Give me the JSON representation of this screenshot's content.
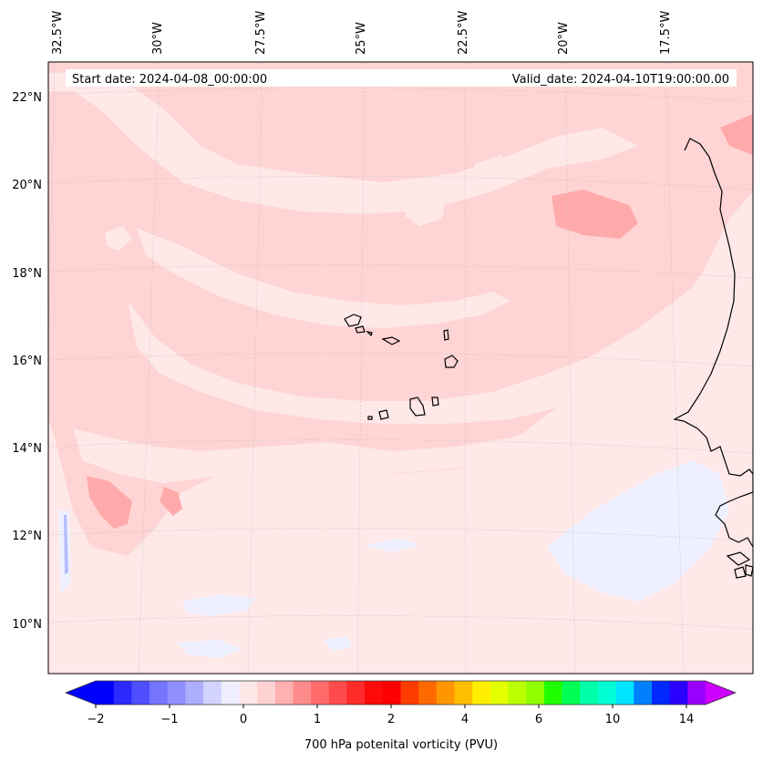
{
  "map": {
    "start_label": "Start date: 2024-04-08_00:00:00",
    "valid_label": "Valid_date: 2024-04-10T19:00:00.00",
    "lon_labels": [
      "32.5°W",
      "30°W",
      "27.5°W",
      "25°W",
      "22.5°W",
      "20°W",
      "17.5°W"
    ],
    "lat_labels": [
      "22°N",
      "20°N",
      "18°N",
      "16°N",
      "14°N",
      "12°N",
      "10°N"
    ],
    "colors": {
      "background": "#ffe8e8",
      "light_pink": "#ffd4d4",
      "medium_pink": "#ffaaaa",
      "light_blue": "#eef0ff",
      "blue": "#b4bcff",
      "coastline": "#000000"
    }
  },
  "colorbar": {
    "label": "700 hPa potenital vorticity (PVU)",
    "ticks": [
      "−2",
      "−1",
      "0",
      "1",
      "2",
      "4",
      "6",
      "10",
      "14"
    ],
    "colors": [
      "#0000ff",
      "#2a2aff",
      "#4f4fff",
      "#7474ff",
      "#8f8fff",
      "#aeaeff",
      "#d3d3ff",
      "#eeeeff",
      "#ffe8e8",
      "#ffd3d3",
      "#ffb0b0",
      "#ff8c8c",
      "#ff6a6a",
      "#ff4b4b",
      "#ff2a2a",
      "#ff0a0a",
      "#ff0000",
      "#ff3c00",
      "#ff6a00",
      "#ff9600",
      "#ffbe00",
      "#ffee00",
      "#e3ff00",
      "#bcff00",
      "#92ff00",
      "#20ff00",
      "#00ff55",
      "#00ffaa",
      "#00ffd5",
      "#00e5ff",
      "#0080ff",
      "#0028ff",
      "#2a00ff",
      "#9a00ff"
    ],
    "under_color": "#0000ff",
    "over_color": "#cc00ff"
  }
}
